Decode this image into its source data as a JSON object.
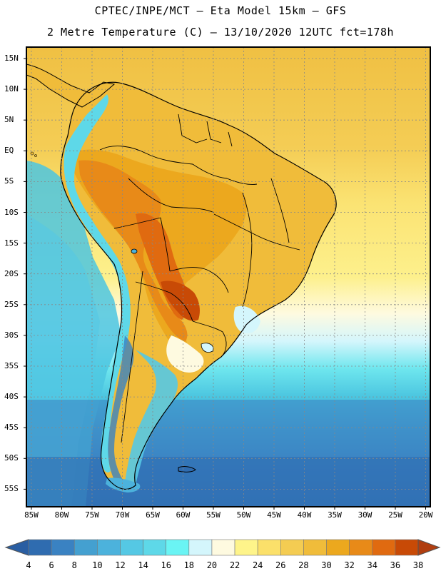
{
  "header": {
    "line1": "CPTEC/INPE/MCT –  Eta Model 15km – GFS",
    "line2": "2 Metre Temperature (C) – 13/10/2020 12UTC fct=178h"
  },
  "map": {
    "lat_labels": [
      "15N",
      "10N",
      "5N",
      "EQ",
      "5S",
      "10S",
      "15S",
      "20S",
      "25S",
      "30S",
      "35S",
      "40S",
      "45S",
      "50S",
      "55S"
    ],
    "lon_labels": [
      "85W",
      "80W",
      "75W",
      "70W",
      "65W",
      "60W",
      "55W",
      "50W",
      "45W",
      "40W",
      "35W",
      "30W",
      "25W",
      "20W"
    ]
  },
  "colorbar": {
    "labels": [
      "4",
      "6",
      "8",
      "10",
      "12",
      "14",
      "16",
      "18",
      "20",
      "22",
      "24",
      "26",
      "28",
      "30",
      "32",
      "34",
      "36",
      "38"
    ],
    "colors": [
      "#2f6cb0",
      "#3a82c2",
      "#44a0d0",
      "#4cb2dc",
      "#55c8e4",
      "#5ed8e8",
      "#6af4f4",
      "#d4f6fc",
      "#fefae0",
      "#fef48a",
      "#fbe06a",
      "#f4cc52",
      "#f0bc3a",
      "#eca81e",
      "#e88a18",
      "#e06a10",
      "#c84a06"
    ],
    "low_color": "#2a5ea2",
    "high_color": "#b03e10"
  }
}
